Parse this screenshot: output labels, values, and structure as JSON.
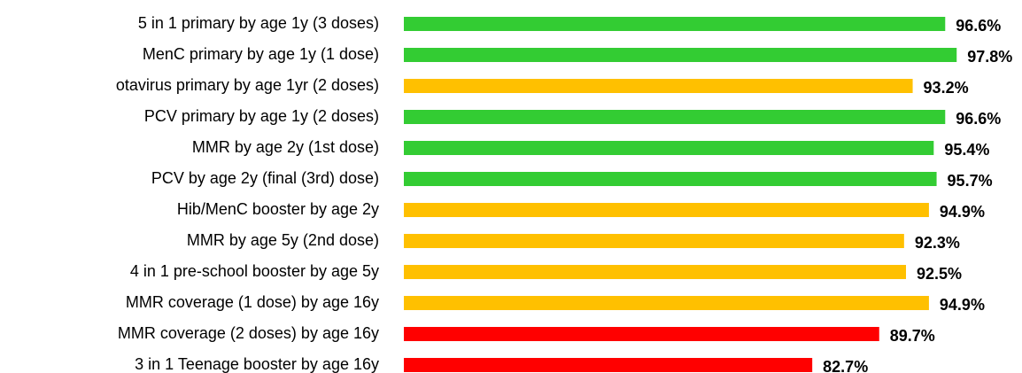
{
  "chart_data": {
    "type": "hbar",
    "categories": [
      "5 in 1 primary by age 1y (3 doses)",
      "MenC primary  by age 1y (1 dose)",
      "otavirus primary  by age 1yr (2 doses)",
      "PCV primary by age 1y (2 doses)",
      "MMR by age 2y (1st dose)",
      "PCV by age 2y (final (3rd)  dose)",
      "Hib/MenC booster by age 2y",
      "MMR by age 5y (2nd dose)",
      "4 in 1 pre-school booster by age 5y",
      "MMR coverage (1 dose) by age 16y",
      "MMR coverage (2 doses) by age 16y",
      "3 in 1 Teenage booster by age 16y"
    ],
    "values": [
      96.6,
      97.8,
      93.2,
      96.6,
      95.4,
      95.7,
      94.9,
      92.3,
      92.5,
      94.9,
      89.7,
      82.7
    ],
    "value_labels": [
      "96.6%",
      "97.8%",
      "93.2%",
      "96.6%",
      "95.4%",
      "95.7%",
      "94.9%",
      "92.3%",
      "92.5%",
      "94.9%",
      "89.7%",
      "82.7%"
    ],
    "colors": [
      "#33cc33",
      "#33cc33",
      "#ffc000",
      "#33cc33",
      "#33cc33",
      "#33cc33",
      "#ffc000",
      "#ffc000",
      "#ffc000",
      "#ffc000",
      "#ff0000",
      "#ff0000"
    ],
    "xlim": [
      40,
      100
    ]
  }
}
